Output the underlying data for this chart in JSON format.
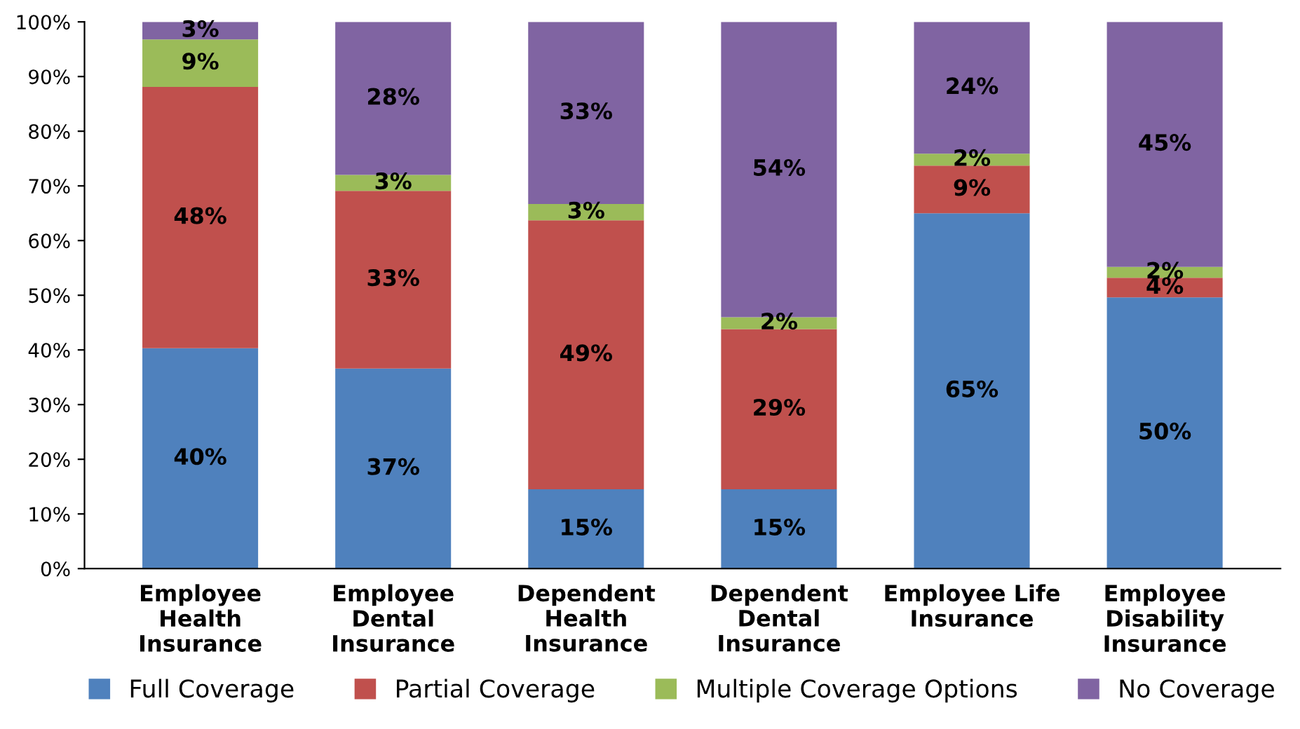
{
  "chart_data": {
    "type": "bar",
    "stacked": true,
    "categories": [
      "Employee\nHealth\nInsurance",
      "Employee\nDental\nInsurance",
      "Dependent\nHealth\nInsurance",
      "Dependent\nDental\nInsurance",
      "Employee Life\nInsurance",
      "Employee\nDisability\nInsurance"
    ],
    "series": [
      {
        "name": "Full Coverage",
        "color": "#4f81bd",
        "values": [
          40.3,
          36.6,
          14.5,
          14.5,
          65.0,
          49.6
        ],
        "value_labels": [
          "40%",
          "37%",
          "15%",
          "15%",
          "65%",
          "50%"
        ]
      },
      {
        "name": "Partial Coverage",
        "color": "#c0504d",
        "values": [
          47.8,
          32.5,
          49.2,
          29.3,
          8.7,
          3.6
        ],
        "value_labels": [
          "48%",
          "33%",
          "49%",
          "29%",
          "9%",
          "4%"
        ]
      },
      {
        "name": "Multiple Coverage Options",
        "color": "#9bbb59",
        "values": [
          8.7,
          2.9,
          3.0,
          2.2,
          2.2,
          2.0
        ],
        "value_labels": [
          "9%",
          "3%",
          "3%",
          "2%",
          "2%",
          "2%"
        ]
      },
      {
        "name": "No Coverage",
        "color": "#8064a2",
        "values": [
          3.2,
          28.0,
          33.3,
          54.0,
          24.1,
          44.8
        ],
        "value_labels": [
          "3%",
          "28%",
          "33%",
          "54%",
          "24%",
          "45%"
        ]
      }
    ],
    "ylim": [
      0,
      100
    ],
    "yticks": [
      {
        "value": 0,
        "label": "0%"
      },
      {
        "value": 10,
        "label": "10%"
      },
      {
        "value": 20,
        "label": "20%"
      },
      {
        "value": 30,
        "label": "30%"
      },
      {
        "value": 40,
        "label": "40%"
      },
      {
        "value": 50,
        "label": "50%"
      },
      {
        "value": 60,
        "label": "60%"
      },
      {
        "value": 70,
        "label": "70%"
      },
      {
        "value": 80,
        "label": "80%"
      },
      {
        "value": 90,
        "label": "90%"
      },
      {
        "value": 100,
        "label": "100%"
      }
    ],
    "grid": false,
    "legend": "bottom"
  }
}
